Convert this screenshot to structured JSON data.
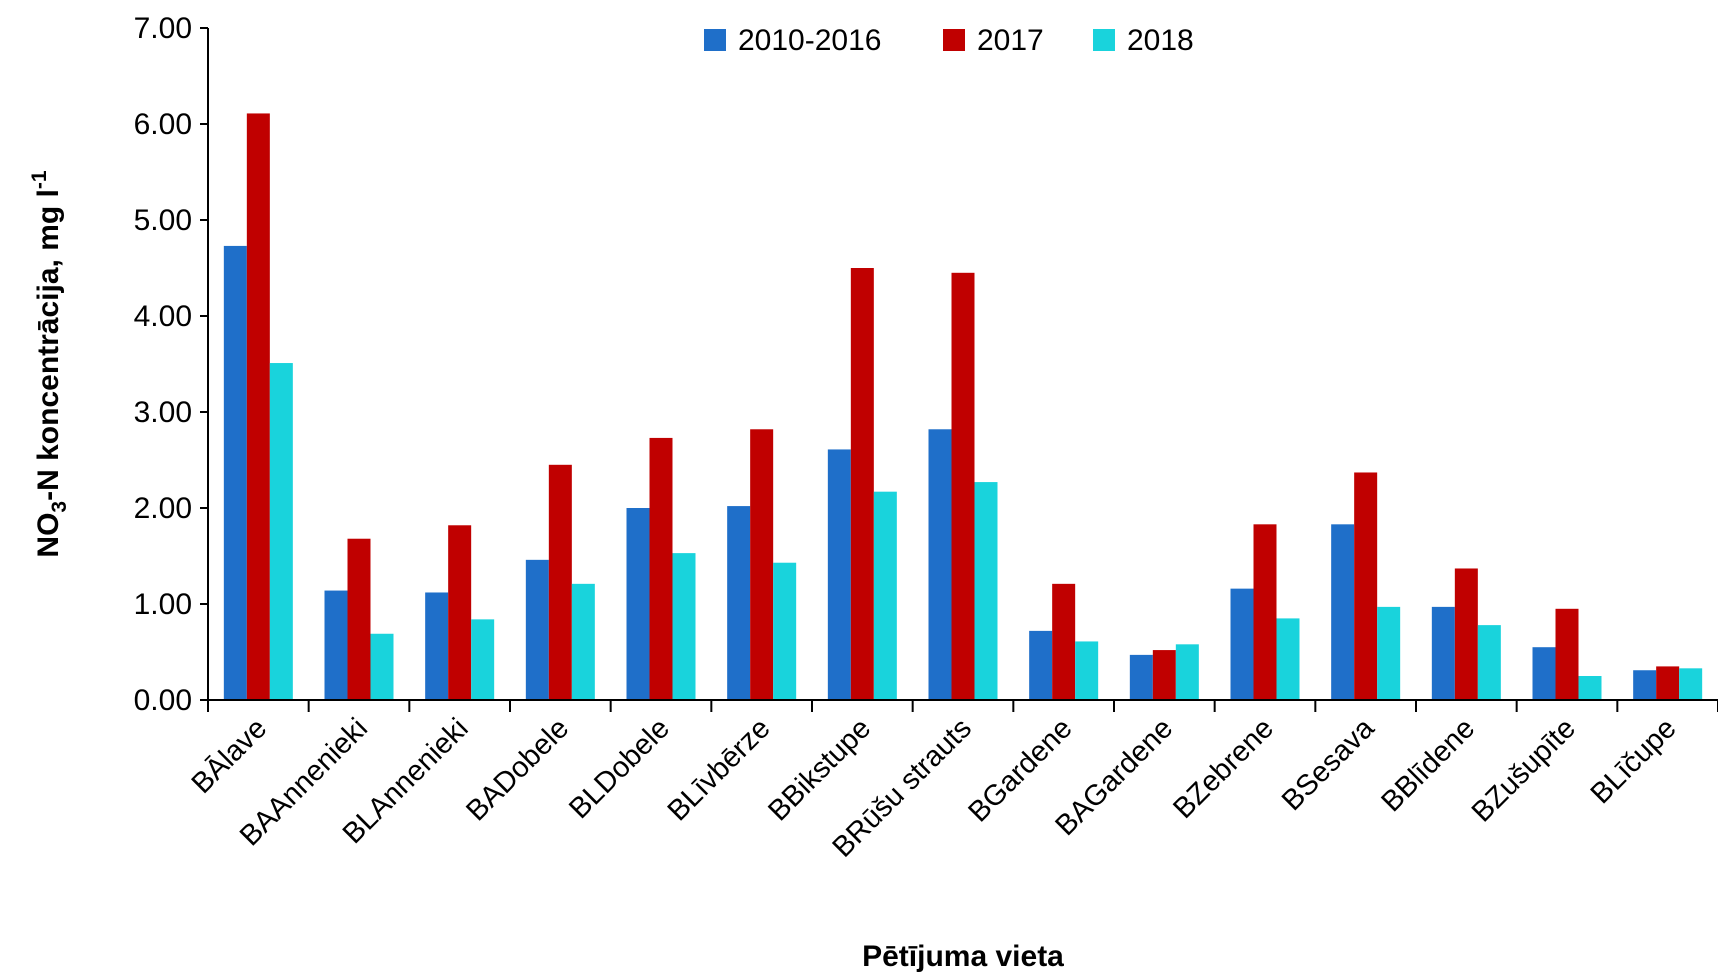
{
  "chart_data": {
    "type": "bar",
    "title": "",
    "xlabel": "Pētījuma vieta",
    "ylabel": {
      "prefix": "NO",
      "sub": "3",
      "middle": "-N koncentrācija, mg l",
      "sup": "-1"
    },
    "ylim": [
      0,
      7
    ],
    "yticks": [
      "0.00",
      "1.00",
      "2.00",
      "3.00",
      "4.00",
      "5.00",
      "6.00",
      "7.00"
    ],
    "grid": false,
    "legend_position": "top-center",
    "categories": [
      "BĀlave",
      "BAAnnenieki",
      "BLAnnenieki",
      "BADobele",
      "BLDobele",
      "BLīvbērze",
      "BBikstupe",
      "BRūšu strauts",
      "BGardene",
      "BAGardene",
      "BZebrene",
      "BSesava",
      "BBlīdene",
      "BZušupīte",
      "BLīčupe"
    ],
    "series": [
      {
        "name": "2010-2016",
        "color": "#1f6fc9",
        "values": [
          4.73,
          1.14,
          1.12,
          1.46,
          2.0,
          2.02,
          2.61,
          2.82,
          0.72,
          0.47,
          1.16,
          1.83,
          0.97,
          0.55,
          0.31
        ]
      },
      {
        "name": "2017",
        "color": "#c00000",
        "values": [
          6.11,
          1.68,
          1.82,
          2.45,
          2.73,
          2.82,
          4.5,
          4.45,
          1.21,
          0.52,
          1.83,
          2.37,
          1.37,
          0.95,
          0.35
        ]
      },
      {
        "name": "2018",
        "color": "#19d3dc",
        "values": [
          3.51,
          0.69,
          0.84,
          1.21,
          1.53,
          1.43,
          2.17,
          2.27,
          0.61,
          0.58,
          0.85,
          0.97,
          0.78,
          0.25,
          0.33
        ]
      }
    ]
  }
}
